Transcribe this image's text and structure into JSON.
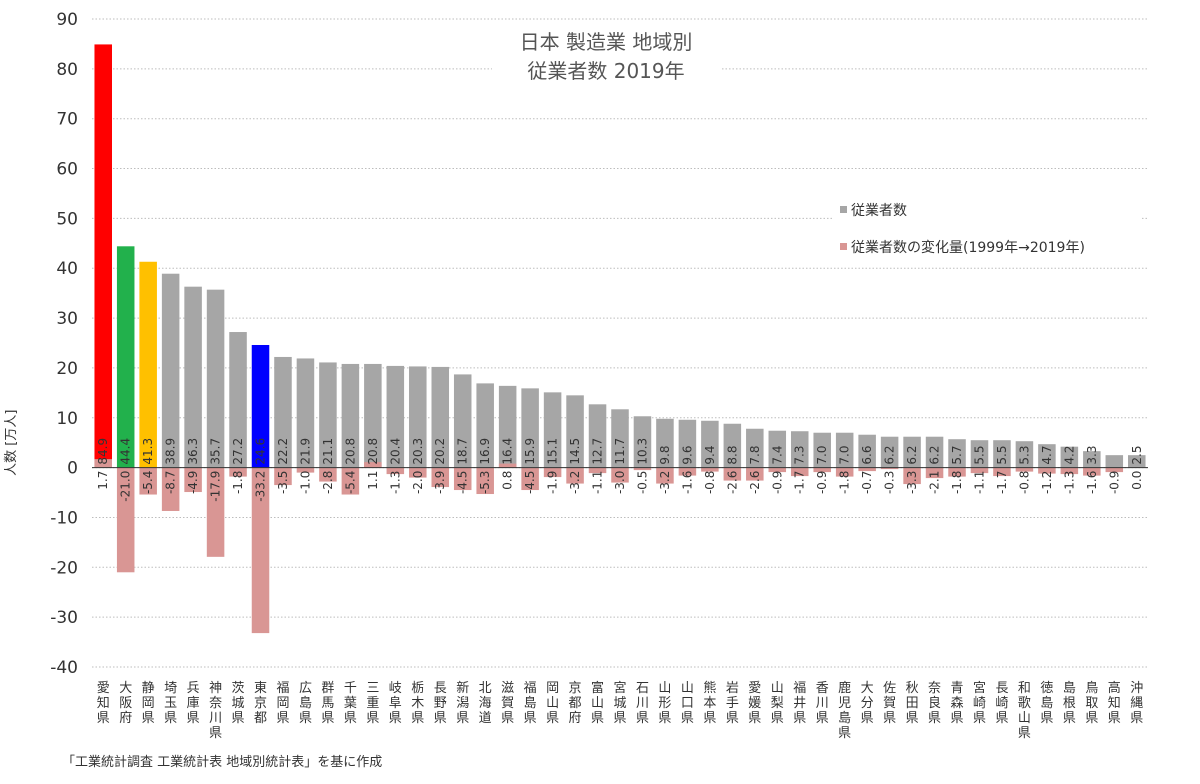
{
  "chart_data": {
    "type": "bar",
    "title_lines": [
      "日本 製造業 地域別",
      "従業者数 2019年"
    ],
    "ylabel": "人数 [万人]",
    "ylim": [
      -40,
      90
    ],
    "yticks": [
      90,
      80,
      70,
      60,
      50,
      40,
      30,
      20,
      10,
      0,
      -10,
      -20,
      -30,
      -40
    ],
    "grid": true,
    "legend_position": "right",
    "source_note": "「工業統計調査 工業統計表 地域別統計表」を基に作成",
    "categories": [
      "愛知県",
      "大阪府",
      "静岡県",
      "埼玉県",
      "兵庫県",
      "神奈川県",
      "茨城県",
      "東京都",
      "福岡県",
      "広島県",
      "群馬県",
      "千葉県",
      "三重県",
      "岐阜県",
      "栃木県",
      "長野県",
      "新潟県",
      "北海道",
      "滋賀県",
      "福島県",
      "岡山県",
      "京都府",
      "富山県",
      "宮城県",
      "石川県",
      "山形県",
      "山口県",
      "熊本県",
      "岩手県",
      "愛媛県",
      "山梨県",
      "福井県",
      "香川県",
      "鹿児島県",
      "大分県",
      "佐賀県",
      "秋田県",
      "奈良県",
      "青森県",
      "宮崎県",
      "長崎県",
      "和歌山県",
      "徳島県",
      "島根県",
      "鳥取県",
      "高知県",
      "沖縄県"
    ],
    "series": [
      {
        "name": "従業者数",
        "color": "#a6a6a6",
        "values": [
          84.9,
          44.4,
          41.3,
          38.9,
          36.3,
          35.7,
          27.2,
          24.6,
          22.2,
          21.9,
          21.1,
          20.8,
          20.8,
          20.4,
          20.3,
          20.2,
          18.7,
          16.9,
          16.4,
          15.9,
          15.1,
          14.5,
          12.7,
          11.7,
          10.3,
          9.8,
          9.6,
          9.4,
          8.8,
          7.8,
          7.4,
          7.3,
          7.0,
          7.0,
          6.6,
          6.2,
          6.2,
          6.2,
          5.7,
          5.5,
          5.5,
          5.3,
          4.7,
          4.2,
          3.3,
          2.5,
          2.5
        ],
        "labels": [
          "84.9",
          "44.4",
          "41.3",
          "38.9",
          "36.3",
          "35.7",
          "27.2",
          "24.6",
          "22.2",
          "21.9",
          "21.1",
          "20.8",
          "20.8",
          "20.4",
          "20.3",
          "20.2",
          "18.7",
          "16.9",
          "16.4",
          "15.9",
          "15.1",
          "14.5",
          "12.7",
          "11.7",
          "10.3",
          "9.8",
          "9.6",
          "9.4",
          "8.8",
          "7.8",
          "7.4",
          "7.3",
          "7.0",
          "7.0",
          "6.6",
          "6.2",
          "6.2",
          "6.2",
          "5.7",
          "5.5",
          "5.5",
          "5.3",
          "4.7",
          "4.2",
          "3.3",
          "",
          "2.5"
        ],
        "highlight_colors": {
          "0": "#ff0000",
          "1": "#22b14c",
          "2": "#ffc000",
          "7": "#0000ff"
        }
      },
      {
        "name": "従業者数の変化量(1999年→2019年)",
        "color": "#d99694",
        "values": [
          1.7,
          -21.0,
          -5.4,
          -8.7,
          -4.9,
          -17.9,
          -1.8,
          -33.2,
          -3.5,
          -1.0,
          -2.8,
          -5.4,
          1.1,
          -1.3,
          -2.0,
          -3.9,
          -4.5,
          -5.3,
          0.8,
          -4.5,
          -1.9,
          -3.2,
          -1.1,
          -3.0,
          -0.5,
          -3.2,
          -1.6,
          -0.8,
          -2.6,
          -2.6,
          -0.9,
          -1.7,
          -0.9,
          -1.8,
          -0.7,
          -0.3,
          -3.3,
          -2.1,
          -1.8,
          -1.1,
          -1.7,
          -0.8,
          -1.2,
          -1.3,
          -1.6,
          -0.9,
          0.0
        ],
        "labels": [
          "1.7",
          "-21.0",
          "-5.4",
          "-8.7",
          "-4.9",
          "-17.9",
          "-1.8",
          "-33.2",
          "-3.5",
          "-1.0",
          "-2.8",
          "-5.4",
          "1.1",
          "-1.3",
          "-2.0",
          "-3.9",
          "-4.5",
          "-5.3",
          "0.8",
          "-4.5",
          "-1.9",
          "-3.2",
          "-1.1",
          "-3.0",
          "-0.5",
          "-3.2",
          "-1.6",
          "-0.8",
          "-2.6",
          "-2.6",
          "-0.9",
          "-1.7",
          "-0.9",
          "-1.8",
          "-0.7",
          "-0.3",
          "-3.3",
          "-2.1",
          "-1.8",
          "-1.1",
          "-1.7",
          "-0.8",
          "-1.2",
          "-1.3",
          "-1.6",
          "-0.9",
          "0.0"
        ]
      }
    ]
  }
}
